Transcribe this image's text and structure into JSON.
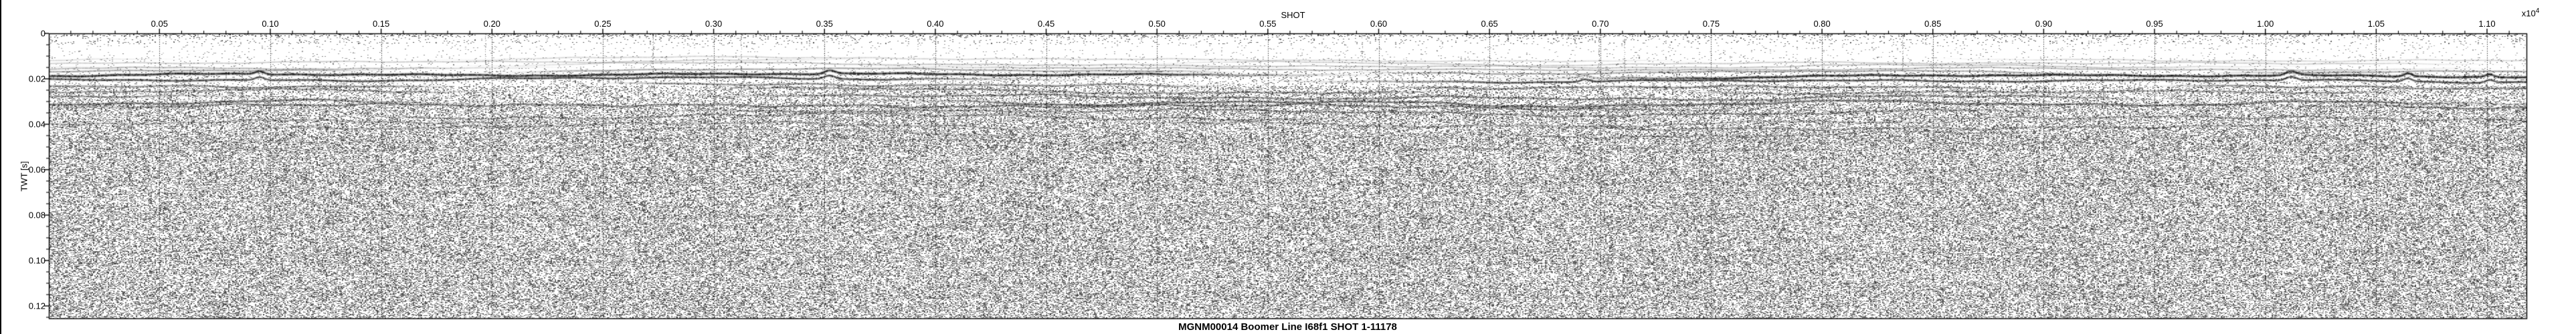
{
  "figure_title": "MGNM00014 Boomer Line I68f1 SHOT 1-11178",
  "x_axis": {
    "label": "SHOT",
    "multiplier_base": "x10",
    "multiplier_exponent": "4",
    "range_shots": [
      1,
      11178
    ],
    "major_tick_values_shots": [
      500,
      1000,
      1500,
      2000,
      2500,
      3000,
      3500,
      4000,
      4500,
      5000,
      5500,
      6000,
      6500,
      7000,
      7500,
      8000,
      8500,
      9000,
      9500,
      10000,
      10500,
      11000
    ],
    "major_tick_labels": [
      "0.05",
      "0.10",
      "0.15",
      "0.20",
      "0.25",
      "0.30",
      "0.35",
      "0.40",
      "0.45",
      "0.50",
      "0.55",
      "0.60",
      "0.65",
      "0.70",
      "0.75",
      "0.80",
      "0.85",
      "0.90",
      "0.95",
      "1.00",
      "1.05",
      "1.10"
    ],
    "minor_tick_step_shots": 100
  },
  "y_axis": {
    "label": "TWT [s]",
    "range_s": [
      0,
      0.125588
    ],
    "major_tick_values_s": [
      0,
      0.02,
      0.04,
      0.06,
      0.08,
      0.1,
      0.12
    ],
    "major_tick_labels": [
      "0",
      "0.02",
      "0.04",
      "0.06",
      "0.08",
      "0.10",
      "0.12"
    ],
    "minor_tick_step_s": 0.005
  },
  "chart_data": {
    "type": "heatmap",
    "title": "MGNM00014 Boomer Line I68f1 SHOT 1-11178",
    "xlabel": "SHOT",
    "x_multiplier_label": "x10^4",
    "ylabel": "TWT [s]",
    "xlim": [
      1,
      11178
    ],
    "ylim": [
      0,
      0.125588
    ],
    "grid": "vertical dotted gridlines at each major x tick",
    "legend": "none",
    "description": "Grayscale boomer seismic reflection profile. White water column above a strong double seafloor reflector at ~0.018-0.021 s TWT, layered sub-bottom reflectors down to ~0.05 s, uniform speckle noise below.",
    "seafloor_twt_s": [
      [
        1,
        0.019
      ],
      [
        1000,
        0.0185
      ],
      [
        2000,
        0.019
      ],
      [
        3000,
        0.0185
      ],
      [
        4000,
        0.0185
      ],
      [
        5000,
        0.019
      ],
      [
        6000,
        0.019
      ],
      [
        7000,
        0.0185
      ],
      [
        8000,
        0.019
      ],
      [
        9000,
        0.0185
      ],
      [
        10000,
        0.019
      ],
      [
        11178,
        0.019
      ]
    ],
    "water_column_base_twt_s": 0.011,
    "noise_floor_start_twt_s": 0.045,
    "colors": {
      "background": "#ffffff",
      "trace": "#000000",
      "grid": "#333333"
    },
    "render": {
      "seed": 1234567,
      "zones": [
        {
          "t_max": 0.0012,
          "density": 0.2,
          "vmin": 40,
          "vmax": 140
        },
        {
          "t_max": 0.0045,
          "density": 0.065,
          "vmin": 60,
          "vmax": 170
        },
        {
          "t_max": 0.01,
          "density": 0.028,
          "vmin": 120,
          "vmax": 200
        },
        {
          "t_max": 0.0165,
          "density": 0.055,
          "vmin": 110,
          "vmax": 200
        },
        {
          "t_max": 0.023,
          "density": 0.14,
          "vmin": 60,
          "vmax": 180
        },
        {
          "t_max": 0.031,
          "density": 0.3,
          "vmin": 50,
          "vmax": 180
        },
        {
          "t_max": 0.043,
          "density": 0.385,
          "vmin": 45,
          "vmax": 185
        },
        {
          "t_max": 1.0,
          "density": 0.44,
          "vmin": 45,
          "vmax": 190
        }
      ],
      "horizons": [
        {
          "t": 0.0115,
          "alpha": 0.2,
          "th": 1.5,
          "amp": 1.1,
          "coh": 0.95
        },
        {
          "t": 0.0128,
          "alpha": 0.24,
          "th": 1.5,
          "amp": 1.2,
          "coh": 0.95
        },
        {
          "t": 0.0141,
          "alpha": 0.28,
          "th": 1.6,
          "amp": 1.2,
          "coh": 0.95
        },
        {
          "t": 0.0154,
          "alpha": 0.33,
          "th": 1.7,
          "amp": 1.3,
          "coh": 0.95
        },
        {
          "t": 0.0167,
          "alpha": 0.42,
          "th": 1.8,
          "amp": 1.3,
          "coh": 0.97
        },
        {
          "t": 0.0185,
          "alpha": 0.95,
          "th": 2.6,
          "amp": 1.5,
          "coh": 1.0,
          "bumps": true
        },
        {
          "t": 0.0205,
          "alpha": 0.85,
          "th": 2.2,
          "amp": 1.6,
          "coh": 0.99,
          "bumps": true
        },
        {
          "t": 0.0232,
          "alpha": 0.5,
          "th": 2.0,
          "amp": 1.9,
          "coh": 0.92
        },
        {
          "t": 0.0256,
          "alpha": 0.44,
          "th": 1.9,
          "amp": 2.1,
          "coh": 0.88
        },
        {
          "t": 0.028,
          "alpha": 0.5,
          "th": 2.0,
          "amp": 2.2,
          "coh": 0.9
        },
        {
          "t": 0.0305,
          "alpha": 0.6,
          "th": 2.2,
          "amp": 2.3,
          "coh": 0.94
        },
        {
          "t": 0.0322,
          "alpha": 0.5,
          "th": 2.0,
          "amp": 2.4,
          "coh": 0.9
        },
        {
          "t": 0.0345,
          "alpha": 0.42,
          "th": 1.9,
          "amp": 2.5,
          "coh": 0.82
        },
        {
          "t": 0.037,
          "alpha": 0.36,
          "th": 1.8,
          "amp": 2.6,
          "coh": 0.76
        },
        {
          "t": 0.0395,
          "alpha": 0.32,
          "th": 1.8,
          "amp": 2.7,
          "coh": 0.7
        },
        {
          "t": 0.0412,
          "alpha": 0.34,
          "th": 1.9,
          "amp": 2.6,
          "coh": 0.72
        },
        {
          "t": 0.044,
          "alpha": 0.24,
          "th": 1.8,
          "amp": 2.8,
          "coh": 0.6
        },
        {
          "t": 0.0475,
          "alpha": 0.18,
          "th": 1.7,
          "amp": 2.8,
          "coh": 0.5
        },
        {
          "t": 0.051,
          "alpha": 0.13,
          "th": 1.6,
          "amp": 2.8,
          "coh": 0.42
        }
      ],
      "bumps": [
        [
          0.085,
          4.5,
          7
        ],
        [
          0.315,
          5.0,
          8
        ],
        [
          0.62,
          4.0,
          7
        ],
        [
          0.905,
          5.5,
          8
        ],
        [
          0.952,
          4.5,
          6
        ],
        [
          0.985,
          4.0,
          6
        ]
      ]
    }
  }
}
